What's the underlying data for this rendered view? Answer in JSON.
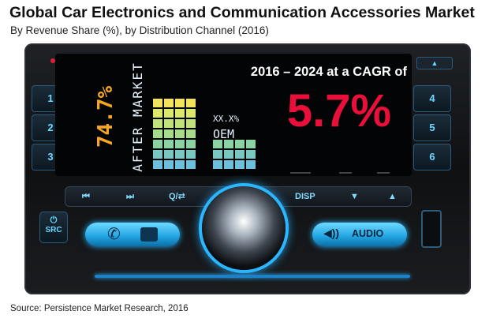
{
  "chart_data": {
    "type": "bar",
    "title": "Global Car Electronics and Communication Accessories Market",
    "subtitle": "By Revenue Share (%), by Distribution Channel (2016)",
    "categories": [
      "AFTER MARKET",
      "OEM"
    ],
    "values": [
      74.7,
      null
    ],
    "value_labels": [
      "74.7%",
      "XX.X%"
    ],
    "cagr_text": "2016 – 2024 at a CAGR of",
    "cagr_value": "5.7%",
    "source": "Source: Persistence Market Research, 2016"
  },
  "radio": {
    "left_buttons": [
      "1",
      "2",
      "3"
    ],
    "right_buttons": [
      "4",
      "5",
      "6"
    ],
    "left_button_label": "SRC",
    "controls": {
      "prev": "⏮",
      "next": "⏭",
      "search": "Q/⇄",
      "disp": "DISP",
      "down": "▼",
      "up": "▲",
      "audio": "AUDIO",
      "phone": "✆"
    }
  },
  "colors": {
    "cagr_value": "#e8103a",
    "after_market_text": "#f5a623",
    "display_accent": "#29b6f6"
  }
}
